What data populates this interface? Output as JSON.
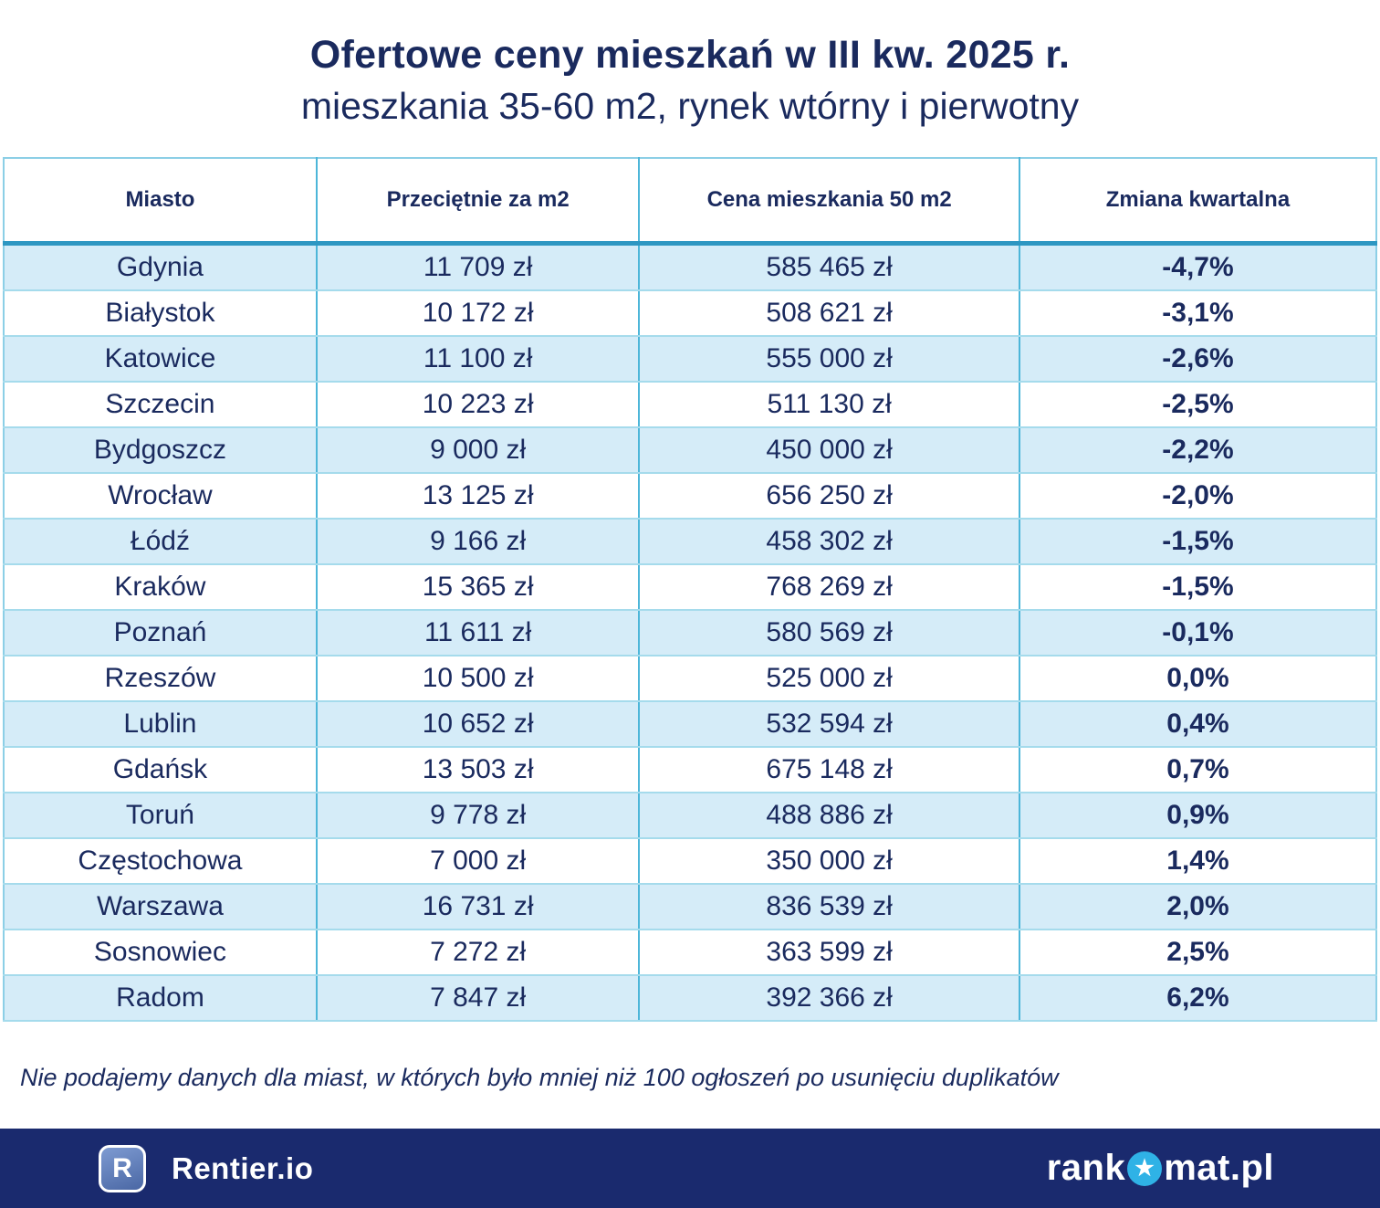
{
  "chart_data": {
    "type": "table",
    "title": "Ofertowe ceny mieszkań w III kw. 2025 r.",
    "subtitle": "mieszkania 35-60 m2, rynek wtórny i pierwotny",
    "columns": [
      "Miasto",
      "Przeciętnie za m2",
      "Cena mieszkania 50 m2",
      "Zmiana kwartalna"
    ],
    "rows": [
      [
        "Gdynia",
        "11 709 zł",
        "585 465 zł",
        "-4,7%"
      ],
      [
        "Białystok",
        "10 172 zł",
        "508 621 zł",
        "-3,1%"
      ],
      [
        "Katowice",
        "11 100 zł",
        "555 000 zł",
        "-2,6%"
      ],
      [
        "Szczecin",
        "10 223 zł",
        "511 130 zł",
        "-2,5%"
      ],
      [
        "Bydgoszcz",
        "9 000 zł",
        "450 000 zł",
        "-2,2%"
      ],
      [
        "Wrocław",
        "13 125 zł",
        "656 250 zł",
        "-2,0%"
      ],
      [
        "Łódź",
        "9 166 zł",
        "458 302 zł",
        "-1,5%"
      ],
      [
        "Kraków",
        "15 365 zł",
        "768 269 zł",
        "-1,5%"
      ],
      [
        "Poznań",
        "11 611 zł",
        "580 569 zł",
        "-0,1%"
      ],
      [
        "Rzeszów",
        "10 500 zł",
        "525 000 zł",
        "0,0%"
      ],
      [
        "Lublin",
        "10 652 zł",
        "532 594 zł",
        "0,4%"
      ],
      [
        "Gdańsk",
        "13 503 zł",
        "675 148 zł",
        "0,7%"
      ],
      [
        "Toruń",
        "9 778 zł",
        "488 886 zł",
        "0,9%"
      ],
      [
        "Częstochowa",
        "7 000 zł",
        "350 000 zł",
        "1,4%"
      ],
      [
        "Warszawa",
        "16 731 zł",
        "836 539 zł",
        "2,0%"
      ],
      [
        "Sosnowiec",
        "7 272 zł",
        "363 599 zł",
        "2,5%"
      ],
      [
        "Radom",
        "7 847 zł",
        "392 366 zł",
        "6,2%"
      ]
    ],
    "row_striping": "odd rows light blue, even rows white",
    "grid": true
  },
  "footnote": "Nie podajemy danych dla miast, w których było mniej niż 100 ogłoszeń po usunięciu duplikatów",
  "footer": {
    "rentier_badge_letter": "R",
    "rentier_label": "Rentier.io",
    "rankomat_prefix": "rank",
    "rankomat_suffix": "mat.pl",
    "star_icon": "★"
  },
  "colors": {
    "text_navy": "#1a2a5e",
    "footer_bar_navy": "#1a2a6e",
    "row_light_blue": "#d5ecf8",
    "column_border": "#4db6d9",
    "row_border": "#a5dbec",
    "header_underline": "#2e97c2",
    "table_outline": "#8ccfe6",
    "star_circle_blue": "#2fb2e6"
  }
}
